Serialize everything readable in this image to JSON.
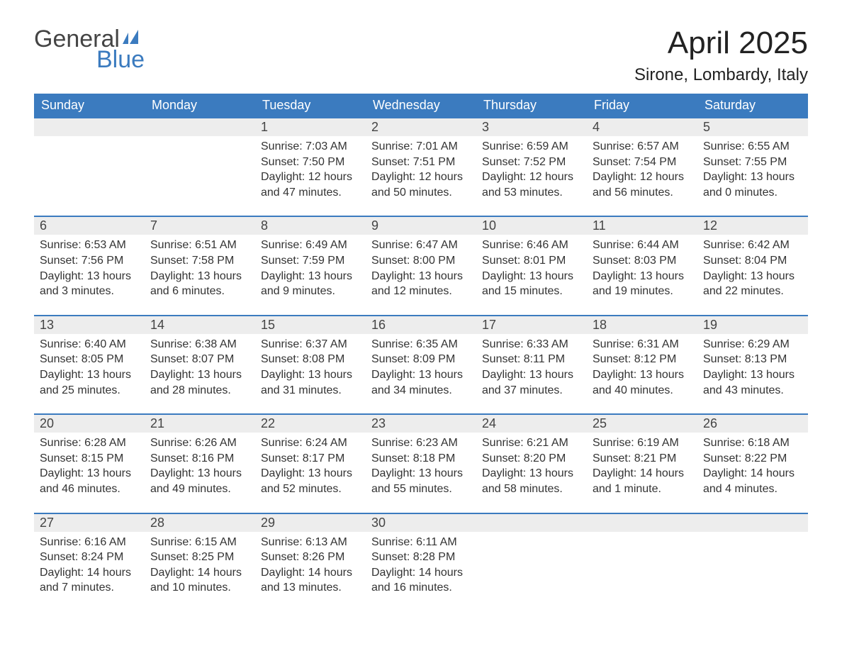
{
  "logo": {
    "general": "General",
    "blue": "Blue"
  },
  "title": "April 2025",
  "location": "Sirone, Lombardy, Italy",
  "colors": {
    "header_bg": "#3b7bbf",
    "header_text": "#ffffff",
    "daynum_bg": "#ededed",
    "border_top": "#3b7bbf",
    "body_text": "#333333"
  },
  "day_headers": [
    "Sunday",
    "Monday",
    "Tuesday",
    "Wednesday",
    "Thursday",
    "Friday",
    "Saturday"
  ],
  "weeks": [
    [
      null,
      null,
      {
        "n": "1",
        "sunrise": "Sunrise: 7:03 AM",
        "sunset": "Sunset: 7:50 PM",
        "daylight": "Daylight: 12 hours and 47 minutes."
      },
      {
        "n": "2",
        "sunrise": "Sunrise: 7:01 AM",
        "sunset": "Sunset: 7:51 PM",
        "daylight": "Daylight: 12 hours and 50 minutes."
      },
      {
        "n": "3",
        "sunrise": "Sunrise: 6:59 AM",
        "sunset": "Sunset: 7:52 PM",
        "daylight": "Daylight: 12 hours and 53 minutes."
      },
      {
        "n": "4",
        "sunrise": "Sunrise: 6:57 AM",
        "sunset": "Sunset: 7:54 PM",
        "daylight": "Daylight: 12 hours and 56 minutes."
      },
      {
        "n": "5",
        "sunrise": "Sunrise: 6:55 AM",
        "sunset": "Sunset: 7:55 PM",
        "daylight": "Daylight: 13 hours and 0 minutes."
      }
    ],
    [
      {
        "n": "6",
        "sunrise": "Sunrise: 6:53 AM",
        "sunset": "Sunset: 7:56 PM",
        "daylight": "Daylight: 13 hours and 3 minutes."
      },
      {
        "n": "7",
        "sunrise": "Sunrise: 6:51 AM",
        "sunset": "Sunset: 7:58 PM",
        "daylight": "Daylight: 13 hours and 6 minutes."
      },
      {
        "n": "8",
        "sunrise": "Sunrise: 6:49 AM",
        "sunset": "Sunset: 7:59 PM",
        "daylight": "Daylight: 13 hours and 9 minutes."
      },
      {
        "n": "9",
        "sunrise": "Sunrise: 6:47 AM",
        "sunset": "Sunset: 8:00 PM",
        "daylight": "Daylight: 13 hours and 12 minutes."
      },
      {
        "n": "10",
        "sunrise": "Sunrise: 6:46 AM",
        "sunset": "Sunset: 8:01 PM",
        "daylight": "Daylight: 13 hours and 15 minutes."
      },
      {
        "n": "11",
        "sunrise": "Sunrise: 6:44 AM",
        "sunset": "Sunset: 8:03 PM",
        "daylight": "Daylight: 13 hours and 19 minutes."
      },
      {
        "n": "12",
        "sunrise": "Sunrise: 6:42 AM",
        "sunset": "Sunset: 8:04 PM",
        "daylight": "Daylight: 13 hours and 22 minutes."
      }
    ],
    [
      {
        "n": "13",
        "sunrise": "Sunrise: 6:40 AM",
        "sunset": "Sunset: 8:05 PM",
        "daylight": "Daylight: 13 hours and 25 minutes."
      },
      {
        "n": "14",
        "sunrise": "Sunrise: 6:38 AM",
        "sunset": "Sunset: 8:07 PM",
        "daylight": "Daylight: 13 hours and 28 minutes."
      },
      {
        "n": "15",
        "sunrise": "Sunrise: 6:37 AM",
        "sunset": "Sunset: 8:08 PM",
        "daylight": "Daylight: 13 hours and 31 minutes."
      },
      {
        "n": "16",
        "sunrise": "Sunrise: 6:35 AM",
        "sunset": "Sunset: 8:09 PM",
        "daylight": "Daylight: 13 hours and 34 minutes."
      },
      {
        "n": "17",
        "sunrise": "Sunrise: 6:33 AM",
        "sunset": "Sunset: 8:11 PM",
        "daylight": "Daylight: 13 hours and 37 minutes."
      },
      {
        "n": "18",
        "sunrise": "Sunrise: 6:31 AM",
        "sunset": "Sunset: 8:12 PM",
        "daylight": "Daylight: 13 hours and 40 minutes."
      },
      {
        "n": "19",
        "sunrise": "Sunrise: 6:29 AM",
        "sunset": "Sunset: 8:13 PM",
        "daylight": "Daylight: 13 hours and 43 minutes."
      }
    ],
    [
      {
        "n": "20",
        "sunrise": "Sunrise: 6:28 AM",
        "sunset": "Sunset: 8:15 PM",
        "daylight": "Daylight: 13 hours and 46 minutes."
      },
      {
        "n": "21",
        "sunrise": "Sunrise: 6:26 AM",
        "sunset": "Sunset: 8:16 PM",
        "daylight": "Daylight: 13 hours and 49 minutes."
      },
      {
        "n": "22",
        "sunrise": "Sunrise: 6:24 AM",
        "sunset": "Sunset: 8:17 PM",
        "daylight": "Daylight: 13 hours and 52 minutes."
      },
      {
        "n": "23",
        "sunrise": "Sunrise: 6:23 AM",
        "sunset": "Sunset: 8:18 PM",
        "daylight": "Daylight: 13 hours and 55 minutes."
      },
      {
        "n": "24",
        "sunrise": "Sunrise: 6:21 AM",
        "sunset": "Sunset: 8:20 PM",
        "daylight": "Daylight: 13 hours and 58 minutes."
      },
      {
        "n": "25",
        "sunrise": "Sunrise: 6:19 AM",
        "sunset": "Sunset: 8:21 PM",
        "daylight": "Daylight: 14 hours and 1 minute."
      },
      {
        "n": "26",
        "sunrise": "Sunrise: 6:18 AM",
        "sunset": "Sunset: 8:22 PM",
        "daylight": "Daylight: 14 hours and 4 minutes."
      }
    ],
    [
      {
        "n": "27",
        "sunrise": "Sunrise: 6:16 AM",
        "sunset": "Sunset: 8:24 PM",
        "daylight": "Daylight: 14 hours and 7 minutes."
      },
      {
        "n": "28",
        "sunrise": "Sunrise: 6:15 AM",
        "sunset": "Sunset: 8:25 PM",
        "daylight": "Daylight: 14 hours and 10 minutes."
      },
      {
        "n": "29",
        "sunrise": "Sunrise: 6:13 AM",
        "sunset": "Sunset: 8:26 PM",
        "daylight": "Daylight: 14 hours and 13 minutes."
      },
      {
        "n": "30",
        "sunrise": "Sunrise: 6:11 AM",
        "sunset": "Sunset: 8:28 PM",
        "daylight": "Daylight: 14 hours and 16 minutes."
      },
      null,
      null,
      null
    ]
  ]
}
